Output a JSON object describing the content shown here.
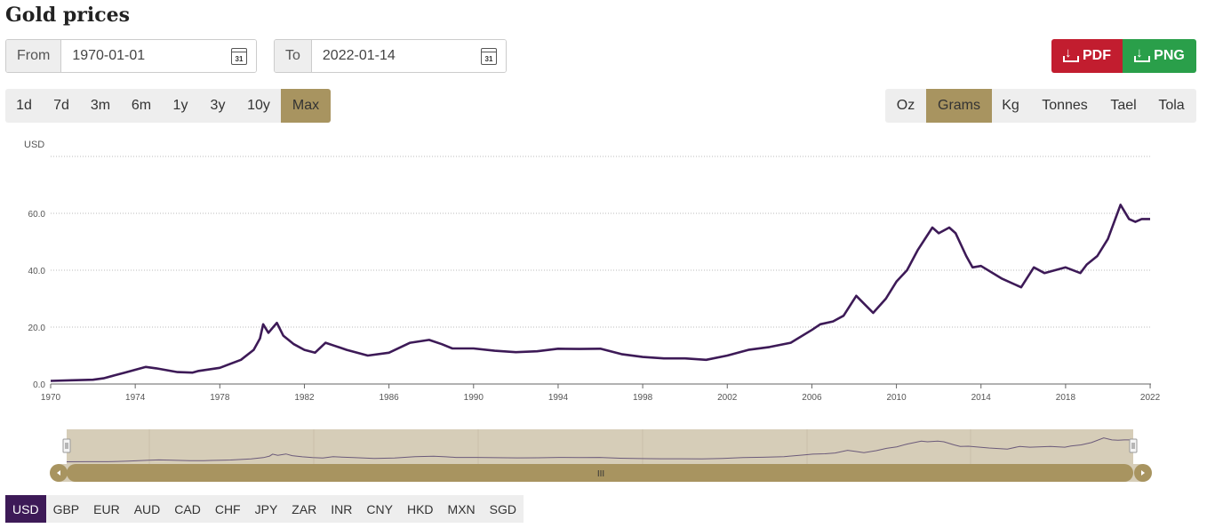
{
  "page_title": "Gold prices",
  "from": {
    "label": "From",
    "value": "1970-01-01",
    "calendar_icon": "calendar-icon",
    "calendar_day": "31"
  },
  "to": {
    "label": "To",
    "value": "2022-01-14",
    "calendar_icon": "calendar-icon",
    "calendar_day": "31"
  },
  "export": {
    "pdf_label": "PDF",
    "png_label": "PNG",
    "pdf_color": "#c21d2f",
    "png_color": "#2a9f4a"
  },
  "ranges": [
    "1d",
    "7d",
    "3m",
    "6m",
    "1y",
    "3y",
    "10y",
    "Max"
  ],
  "active_range": "Max",
  "units": [
    "Oz",
    "Grams",
    "Kg",
    "Tonnes",
    "Tael",
    "Tola"
  ],
  "active_unit": "Grams",
  "currencies": [
    "USD",
    "GBP",
    "EUR",
    "AUD",
    "CAD",
    "CHF",
    "JPY",
    "ZAR",
    "INR",
    "CNY",
    "HKD",
    "MXN",
    "SGD"
  ],
  "active_currency": "USD",
  "navigator": {
    "scroll_grip": "III"
  },
  "colors": {
    "line": "#3d1a57",
    "accent": "#a89460",
    "navigator_bg": "#d6cdb8"
  },
  "chart_data": {
    "type": "line",
    "title": "",
    "ylabel": "USD",
    "xlabel": "",
    "xlim": [
      1970,
      2022.04
    ],
    "ylim": [
      0,
      80
    ],
    "yticks": [
      "0.0",
      "20.0",
      "40.0",
      "60.0"
    ],
    "xticks": [
      "1970",
      "1974",
      "1978",
      "1982",
      "1986",
      "1990",
      "1994",
      "1998",
      "2002",
      "2006",
      "2010",
      "2014",
      "2018",
      "2022"
    ],
    "grid": true,
    "series": [
      {
        "name": "",
        "x": [
          1970,
          1971,
          1972,
          1972.5,
          1973,
          1973.5,
          1974,
          1974.5,
          1975,
          1976,
          1976.7,
          1977,
          1978,
          1979,
          1979.6,
          1979.9,
          1980.05,
          1980.3,
          1980.7,
          1981,
          1981.5,
          1982,
          1982.5,
          1983,
          1983.4,
          1984,
          1985,
          1986,
          1987,
          1987.9,
          1988.5,
          1989,
          1990,
          1991,
          1992,
          1993,
          1994,
          1995,
          1996,
          1997,
          1998,
          1999,
          2000,
          2001,
          2002,
          2003,
          2004,
          2005,
          2006,
          2006.4,
          2007,
          2007.5,
          2008.1,
          2008.5,
          2008.9,
          2009.5,
          2010,
          2010.5,
          2011,
          2011.7,
          2012,
          2012.5,
          2012.8,
          2013.3,
          2013.6,
          2014,
          2015,
          2015.9,
          2016.5,
          2017,
          2018,
          2018.7,
          2019,
          2019.5,
          2020,
          2020.6,
          2021,
          2021.3,
          2021.6,
          2022
        ],
        "values": [
          1.1,
          1.3,
          1.5,
          2.0,
          3.0,
          4.0,
          5.0,
          6.0,
          5.5,
          4.2,
          4.0,
          4.6,
          5.7,
          8.5,
          12.0,
          16.0,
          21.0,
          18.0,
          21.5,
          17.0,
          14.0,
          12.0,
          11.0,
          14.5,
          13.5,
          12.0,
          10.0,
          11.0,
          14.5,
          15.5,
          14.0,
          12.5,
          12.5,
          11.7,
          11.2,
          11.5,
          12.4,
          12.3,
          12.4,
          10.5,
          9.5,
          9.0,
          9.0,
          8.5,
          10.0,
          12.0,
          13.0,
          14.5,
          19.0,
          21.0,
          22.0,
          24.0,
          31.0,
          28.0,
          25.0,
          30.0,
          36.0,
          40.0,
          47.0,
          55.0,
          53.0,
          55.0,
          53.0,
          45.0,
          41.0,
          41.5,
          37.0,
          34.0,
          41.0,
          39.0,
          41.0,
          39.0,
          42.0,
          45.0,
          51.0,
          63.0,
          58.0,
          57.0,
          58.0,
          58.0
        ]
      }
    ]
  }
}
